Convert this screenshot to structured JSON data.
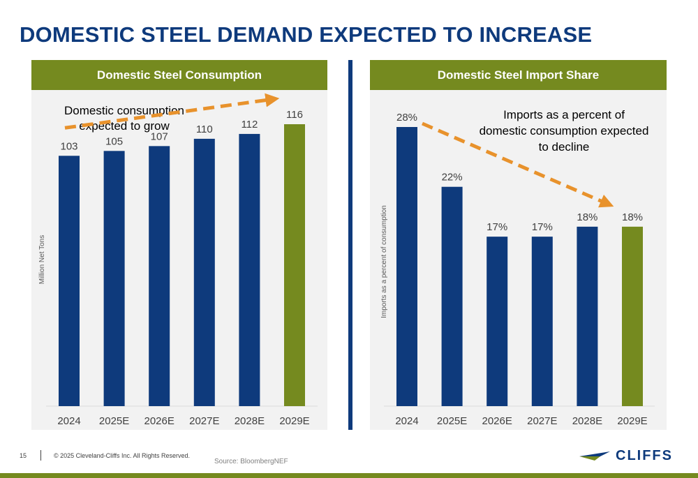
{
  "slide": {
    "title": "DOMESTIC STEEL DEMAND EXPECTED TO INCREASE",
    "page_number": "15",
    "copyright": "© 2025 Cleveland-Cliffs Inc. All Rights Reserved.",
    "source": "Source: BloombergNEF",
    "logo_text": "CLIFFS"
  },
  "colors": {
    "navy": "#0e3a7c",
    "olive": "#758a1f",
    "arrow": "#e8922c",
    "panel": "#f2f2f2"
  },
  "chart_data": [
    {
      "type": "bar",
      "title": "Domestic Steel Consumption",
      "ylabel": "Million Net Tons",
      "categories": [
        "2024",
        "2025E",
        "2026E",
        "2027E",
        "2028E",
        "2029E"
      ],
      "values": [
        103,
        105,
        107,
        110,
        112,
        116
      ],
      "labels": [
        "103",
        "105",
        "107",
        "110",
        "112",
        "116"
      ],
      "highlight_index": 5,
      "ylim": [
        0,
        130
      ],
      "annotation_lines": [
        "Domestic consumption",
        "expected to grow"
      ],
      "trend": "up",
      "grid": false,
      "legend": "none"
    },
    {
      "type": "bar",
      "title": "Domestic Steel Import Share",
      "ylabel": "Imports as a percent of consumption",
      "categories": [
        "2024",
        "2025E",
        "2026E",
        "2027E",
        "2028E",
        "2029E"
      ],
      "values": [
        28,
        22,
        17,
        17,
        18,
        18
      ],
      "labels": [
        "28%",
        "22%",
        "17%",
        "17%",
        "18%",
        "18%"
      ],
      "highlight_index": 5,
      "ylim": [
        0,
        30
      ],
      "annotation_lines": [
        "Imports as a percent of",
        "domestic consumption expected",
        "to decline"
      ],
      "trend": "down",
      "grid": false,
      "legend": "none"
    }
  ]
}
